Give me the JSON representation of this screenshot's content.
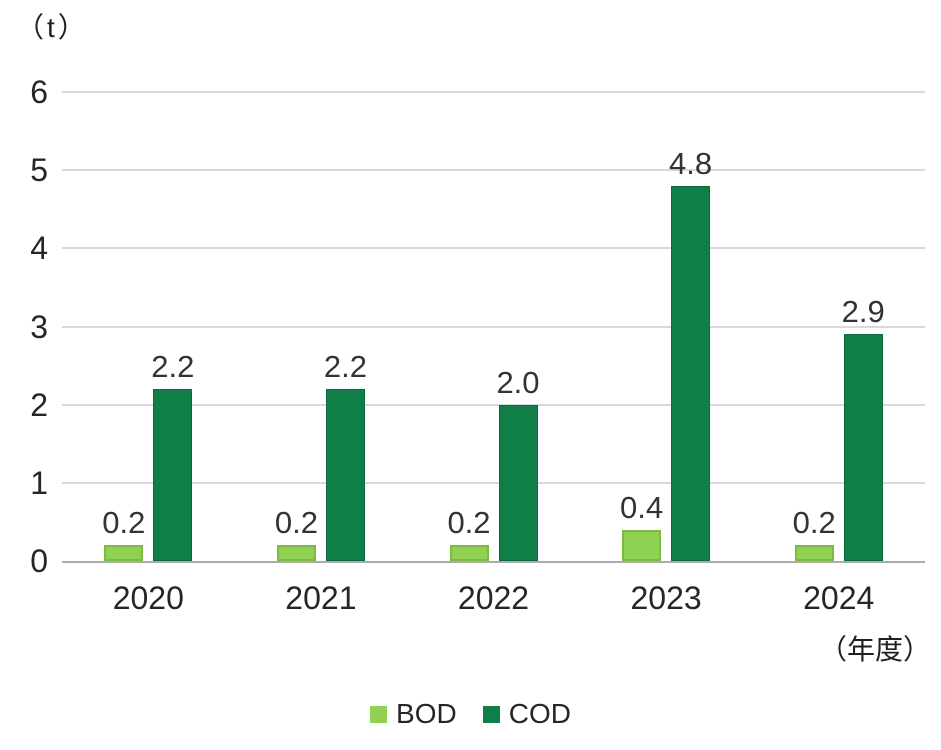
{
  "chart_data": {
    "type": "bar",
    "title": "",
    "unit_label": "（t）",
    "xaxis_unit_label": "（年度）",
    "categories": [
      "2020",
      "2021",
      "2022",
      "2023",
      "2024"
    ],
    "series": [
      {
        "name": "BOD",
        "color": "#8ed153",
        "border_color": "#79bc3e",
        "values": [
          0.2,
          0.2,
          0.2,
          0.4,
          0.2
        ],
        "labels": [
          "0.2",
          "0.2",
          "0.2",
          "0.4",
          "0.2"
        ]
      },
      {
        "name": "COD",
        "color": "#0f7e47",
        "border_color": "#0a6b3b",
        "values": [
          2.2,
          2.2,
          2.0,
          4.8,
          2.9
        ],
        "labels": [
          "2.2",
          "2.2",
          "2.0",
          "4.8",
          "2.9"
        ]
      }
    ],
    "ylim": [
      0,
      6
    ],
    "yticks": [
      0,
      1,
      2,
      3,
      4,
      5,
      6
    ],
    "grid": true,
    "legend_position": "bottom"
  },
  "style": {
    "gridline_color": "#d9d9d9",
    "axis_line_color": "#ababab",
    "label_color": "#333333",
    "background": "#ffffff"
  }
}
